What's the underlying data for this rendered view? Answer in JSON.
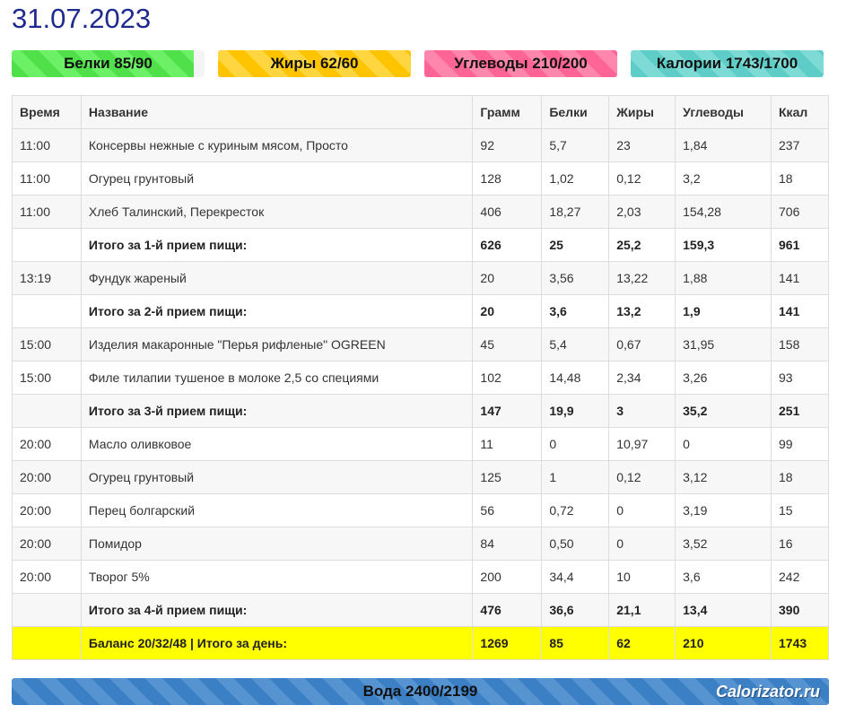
{
  "date": "31.07.2023",
  "summary": {
    "protein": {
      "label": "Белки 85/90",
      "progress": 0.944,
      "color": "#4fe04a"
    },
    "fat": {
      "label": "Жиры 62/60",
      "progress": 1.0,
      "color": "#ffc400"
    },
    "carbs": {
      "label": "Углеводы 210/200",
      "progress": 1.0,
      "color": "#ff6496"
    },
    "kcal": {
      "label": "Калории 1743/1700",
      "progress": 1.0,
      "color": "#5ecdc7"
    }
  },
  "table": {
    "headers": [
      "Время",
      "Название",
      "Грамм",
      "Белки",
      "Жиры",
      "Углеводы",
      "Ккал"
    ],
    "rows": [
      {
        "type": "item",
        "cells": [
          "11:00",
          "Консервы нежные с куриным мясом, Просто",
          "92",
          "5,7",
          "23",
          "1,84",
          "237"
        ]
      },
      {
        "type": "item",
        "cells": [
          "11:00",
          "Огурец грунтовый",
          "128",
          "1,02",
          "0,12",
          "3,2",
          "18"
        ]
      },
      {
        "type": "item",
        "cells": [
          "11:00",
          "Хлеб Талинский, Перекресток",
          "406",
          "18,27",
          "2,03",
          "154,28",
          "706"
        ]
      },
      {
        "type": "subtotal",
        "cells": [
          "",
          "Итого за 1-й прием пищи:",
          "626",
          "25",
          "25,2",
          "159,3",
          "961"
        ]
      },
      {
        "type": "item",
        "cells": [
          "13:19",
          "Фундук жареный",
          "20",
          "3,56",
          "13,22",
          "1,88",
          "141"
        ]
      },
      {
        "type": "subtotal",
        "cells": [
          "",
          "Итого за 2-й прием пищи:",
          "20",
          "3,6",
          "13,2",
          "1,9",
          "141"
        ]
      },
      {
        "type": "item",
        "cells": [
          "15:00",
          "Изделия макаронные \"Перья рифленые\" OGREEN",
          "45",
          "5,4",
          "0,67",
          "31,95",
          "158"
        ]
      },
      {
        "type": "item",
        "cells": [
          "15:00",
          "Филе тилапии тушеное в молоке 2,5 со специями",
          "102",
          "14,48",
          "2,34",
          "3,26",
          "93"
        ]
      },
      {
        "type": "subtotal",
        "cells": [
          "",
          "Итого за 3-й прием пищи:",
          "147",
          "19,9",
          "3",
          "35,2",
          "251"
        ]
      },
      {
        "type": "item",
        "cells": [
          "20:00",
          "Масло оливковое",
          "11",
          "0",
          "10,97",
          "0",
          "99"
        ]
      },
      {
        "type": "item",
        "cells": [
          "20:00",
          "Огурец грунтовый",
          "125",
          "1",
          "0,12",
          "3,12",
          "18"
        ]
      },
      {
        "type": "item",
        "cells": [
          "20:00",
          "Перец болгарский",
          "56",
          "0,72",
          "0",
          "3,19",
          "15"
        ]
      },
      {
        "type": "item",
        "cells": [
          "20:00",
          "Помидор",
          "84",
          "0,50",
          "0",
          "3,52",
          "16"
        ]
      },
      {
        "type": "item",
        "cells": [
          "20:00",
          "Творог 5%",
          "200",
          "34,4",
          "10",
          "3,6",
          "242"
        ]
      },
      {
        "type": "subtotal",
        "cells": [
          "",
          "Итого за 4-й прием пищи:",
          "476",
          "36,6",
          "21,1",
          "13,4",
          "390"
        ]
      },
      {
        "type": "total",
        "cells": [
          "",
          "Баланс 20/32/48 | Итого за день:",
          "1269",
          "85",
          "62",
          "210",
          "1743"
        ]
      }
    ]
  },
  "water": {
    "label": "Вода 2400/2199",
    "progress": 1.0,
    "color": "#3b7fc4"
  },
  "brand": "Calorizator.ru"
}
